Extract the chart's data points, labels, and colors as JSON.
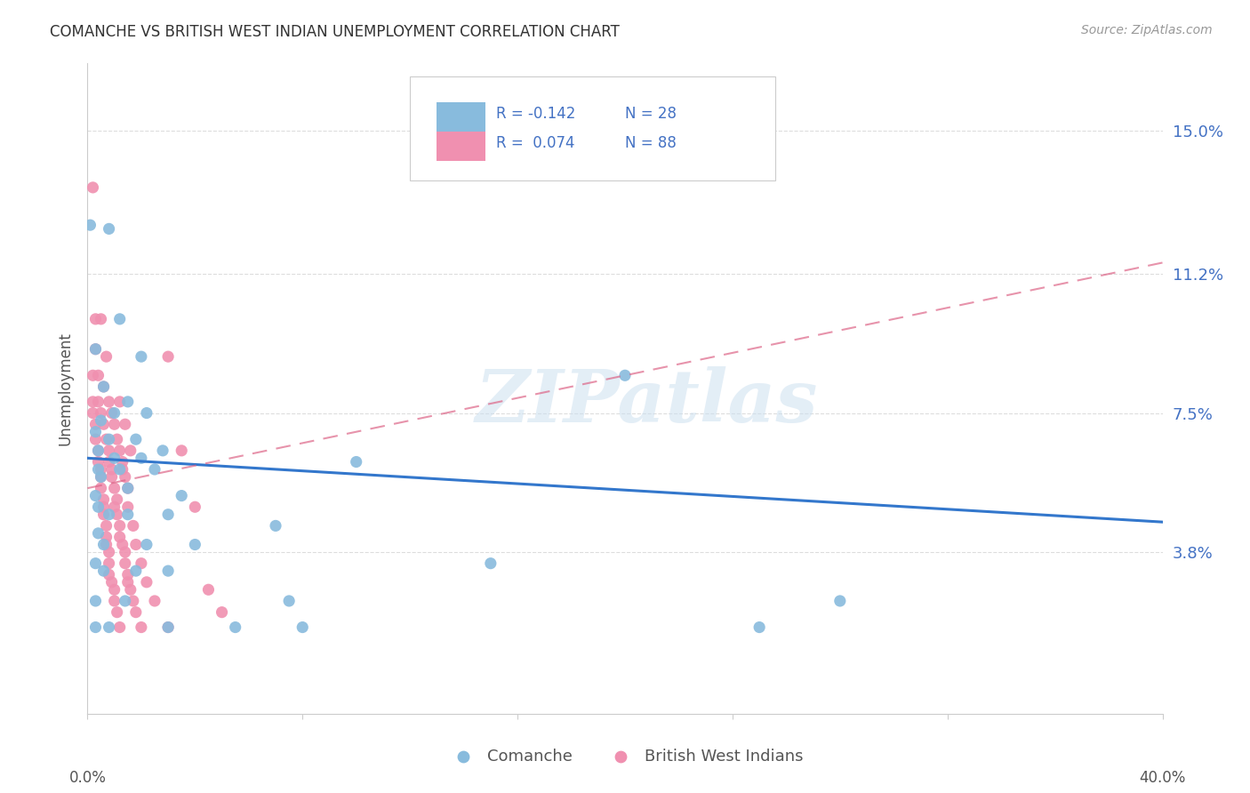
{
  "title": "COMANCHE VS BRITISH WEST INDIAN UNEMPLOYMENT CORRELATION CHART",
  "source": "Source: ZipAtlas.com",
  "ylabel": "Unemployment",
  "yticks": [
    0.038,
    0.075,
    0.112,
    0.15
  ],
  "ytick_labels": [
    "3.8%",
    "7.5%",
    "11.2%",
    "15.0%"
  ],
  "xmin": 0.0,
  "xmax": 0.4,
  "ymin": -0.005,
  "ymax": 0.168,
  "watermark": "ZIPatlas",
  "comanche_color": "#88bbdd",
  "bwi_color": "#f090b0",
  "trend_comanche_color": "#3377cc",
  "trend_bwi_color": "#dd6688",
  "comanche_trend_start": 0.063,
  "comanche_trend_end": 0.046,
  "bwi_trend_start": 0.055,
  "bwi_trend_end": 0.115,
  "comanche_scatter": [
    [
      0.001,
      0.125
    ],
    [
      0.008,
      0.124
    ],
    [
      0.012,
      0.1
    ],
    [
      0.003,
      0.092
    ],
    [
      0.02,
      0.09
    ],
    [
      0.006,
      0.082
    ],
    [
      0.015,
      0.078
    ],
    [
      0.005,
      0.073
    ],
    [
      0.01,
      0.075
    ],
    [
      0.022,
      0.075
    ],
    [
      0.003,
      0.07
    ],
    [
      0.008,
      0.068
    ],
    [
      0.018,
      0.068
    ],
    [
      0.004,
      0.065
    ],
    [
      0.01,
      0.063
    ],
    [
      0.02,
      0.063
    ],
    [
      0.028,
      0.065
    ],
    [
      0.004,
      0.06
    ],
    [
      0.012,
      0.06
    ],
    [
      0.025,
      0.06
    ],
    [
      0.005,
      0.058
    ],
    [
      0.015,
      0.055
    ],
    [
      0.003,
      0.053
    ],
    [
      0.035,
      0.053
    ],
    [
      0.004,
      0.05
    ],
    [
      0.008,
      0.048
    ],
    [
      0.015,
      0.048
    ],
    [
      0.03,
      0.048
    ],
    [
      0.004,
      0.043
    ],
    [
      0.006,
      0.04
    ],
    [
      0.022,
      0.04
    ],
    [
      0.04,
      0.04
    ],
    [
      0.003,
      0.035
    ],
    [
      0.006,
      0.033
    ],
    [
      0.018,
      0.033
    ],
    [
      0.03,
      0.033
    ],
    [
      0.003,
      0.025
    ],
    [
      0.014,
      0.025
    ],
    [
      0.075,
      0.025
    ],
    [
      0.003,
      0.018
    ],
    [
      0.008,
      0.018
    ],
    [
      0.03,
      0.018
    ],
    [
      0.07,
      0.045
    ],
    [
      0.1,
      0.062
    ],
    [
      0.055,
      0.018
    ],
    [
      0.08,
      0.018
    ],
    [
      0.15,
      0.035
    ],
    [
      0.25,
      0.018
    ],
    [
      0.2,
      0.085
    ],
    [
      0.28,
      0.025
    ]
  ],
  "bwi_scatter": [
    [
      0.002,
      0.135
    ],
    [
      0.003,
      0.1
    ],
    [
      0.005,
      0.1
    ],
    [
      0.003,
      0.092
    ],
    [
      0.007,
      0.09
    ],
    [
      0.002,
      0.085
    ],
    [
      0.004,
      0.085
    ],
    [
      0.006,
      0.082
    ],
    [
      0.002,
      0.078
    ],
    [
      0.004,
      0.078
    ],
    [
      0.008,
      0.078
    ],
    [
      0.012,
      0.078
    ],
    [
      0.002,
      0.075
    ],
    [
      0.005,
      0.075
    ],
    [
      0.009,
      0.075
    ],
    [
      0.003,
      0.072
    ],
    [
      0.006,
      0.072
    ],
    [
      0.01,
      0.072
    ],
    [
      0.014,
      0.072
    ],
    [
      0.003,
      0.068
    ],
    [
      0.007,
      0.068
    ],
    [
      0.011,
      0.068
    ],
    [
      0.004,
      0.065
    ],
    [
      0.008,
      0.065
    ],
    [
      0.012,
      0.065
    ],
    [
      0.016,
      0.065
    ],
    [
      0.004,
      0.062
    ],
    [
      0.008,
      0.062
    ],
    [
      0.013,
      0.062
    ],
    [
      0.005,
      0.06
    ],
    [
      0.009,
      0.06
    ],
    [
      0.013,
      0.06
    ],
    [
      0.005,
      0.058
    ],
    [
      0.009,
      0.058
    ],
    [
      0.014,
      0.058
    ],
    [
      0.005,
      0.055
    ],
    [
      0.01,
      0.055
    ],
    [
      0.015,
      0.055
    ],
    [
      0.006,
      0.052
    ],
    [
      0.011,
      0.052
    ],
    [
      0.006,
      0.05
    ],
    [
      0.01,
      0.05
    ],
    [
      0.015,
      0.05
    ],
    [
      0.006,
      0.048
    ],
    [
      0.011,
      0.048
    ],
    [
      0.007,
      0.045
    ],
    [
      0.012,
      0.045
    ],
    [
      0.017,
      0.045
    ],
    [
      0.007,
      0.042
    ],
    [
      0.012,
      0.042
    ],
    [
      0.007,
      0.04
    ],
    [
      0.013,
      0.04
    ],
    [
      0.018,
      0.04
    ],
    [
      0.008,
      0.038
    ],
    [
      0.014,
      0.038
    ],
    [
      0.008,
      0.035
    ],
    [
      0.014,
      0.035
    ],
    [
      0.02,
      0.035
    ],
    [
      0.008,
      0.032
    ],
    [
      0.015,
      0.032
    ],
    [
      0.009,
      0.03
    ],
    [
      0.015,
      0.03
    ],
    [
      0.022,
      0.03
    ],
    [
      0.01,
      0.028
    ],
    [
      0.016,
      0.028
    ],
    [
      0.01,
      0.025
    ],
    [
      0.017,
      0.025
    ],
    [
      0.025,
      0.025
    ],
    [
      0.011,
      0.022
    ],
    [
      0.018,
      0.022
    ],
    [
      0.012,
      0.018
    ],
    [
      0.02,
      0.018
    ],
    [
      0.03,
      0.018
    ],
    [
      0.03,
      0.09
    ],
    [
      0.035,
      0.065
    ],
    [
      0.04,
      0.05
    ],
    [
      0.045,
      0.028
    ],
    [
      0.05,
      0.022
    ]
  ]
}
